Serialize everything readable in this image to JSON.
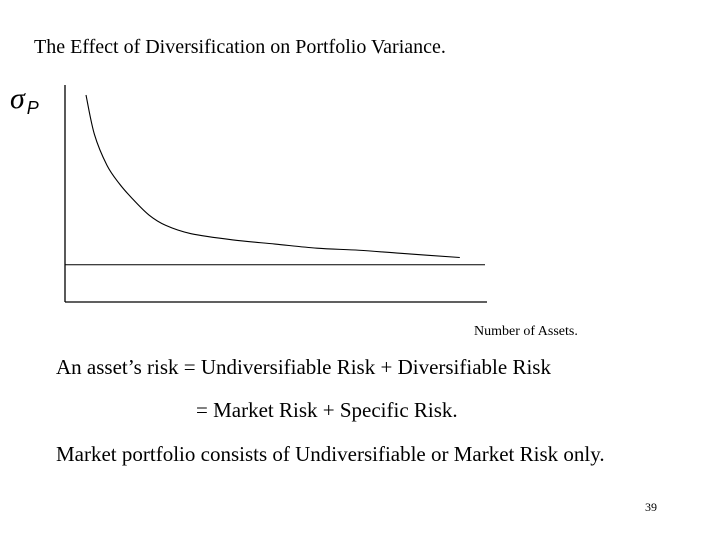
{
  "slide": {
    "title": "The Effect of Diversification on Portfolio Variance.",
    "lines": [
      "An asset’s risk = Undiversifiable Risk + Diversifiable Risk",
      "=  Market Risk + Specific Risk.",
      "Market portfolio consists of Undiversifiable or Market Risk only."
    ],
    "page_number": "39"
  },
  "chart_data": {
    "type": "line",
    "ylabel_symbol": "σ",
    "ylabel_subscript": "P",
    "xlabel": "Number of Assets.",
    "grid": false,
    "legend": "none",
    "xlim": [
      0,
      10
    ],
    "ylim": [
      0,
      10
    ],
    "series": [
      {
        "role": "total-risk-curve",
        "x": [
          0.5,
          0.7,
          1.0,
          1.3,
          1.6,
          2.0,
          2.4,
          3.0,
          4.0,
          5.0,
          6.0,
          7.0,
          8.0,
          9.4
        ],
        "y": [
          10.0,
          8.1,
          6.6,
          5.7,
          5.0,
          4.2,
          3.7,
          3.3,
          3.0,
          2.8,
          2.6,
          2.5,
          2.35,
          2.15
        ]
      },
      {
        "role": "market-risk-line",
        "x": [
          0,
          10
        ],
        "y": [
          1.8,
          1.8
        ]
      }
    ],
    "colors": {
      "curve": "#000000",
      "axis": "#000000"
    }
  }
}
